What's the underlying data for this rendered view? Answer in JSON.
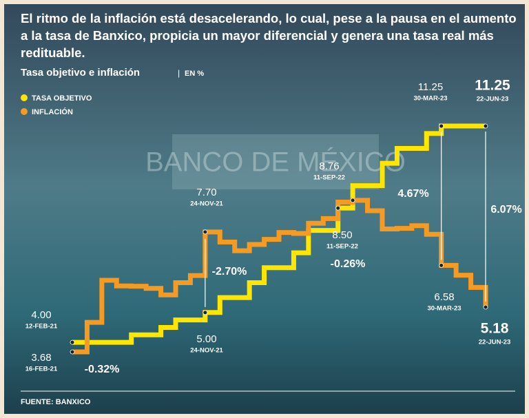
{
  "chart_data": {
    "type": "line",
    "title": "El ritmo de la inflación está desacelerando, lo cual, pese a la pausa en el aumento a la tasa de Banxico, propicia un mayor diferencial y genera una tasa real más redituable.",
    "subtitle": "Tasa objetivo e inflación",
    "unit": "EN %",
    "background_text": "BANCO DE MÉXICO",
    "source": "FUENTE: BANXICO",
    "step": true,
    "categories": [
      null,
      null,
      null,
      null,
      null,
      null,
      null,
      null,
      null,
      null,
      null,
      null,
      null,
      null,
      null,
      null,
      null,
      null,
      null,
      null,
      null,
      null,
      null,
      null,
      null,
      null,
      null,
      null,
      null
    ],
    "series": [
      {
        "name": "TASA OBJETIVO",
        "color": "#ffe600",
        "values": [
          4.0,
          4.0,
          4.0,
          4.0,
          4.25,
          4.25,
          4.5,
          4.75,
          4.75,
          5.0,
          5.5,
          5.5,
          6.0,
          6.5,
          6.5,
          7.0,
          7.75,
          7.75,
          8.5,
          9.25,
          9.25,
          10.0,
          10.5,
          10.5,
          11.0,
          11.25,
          11.25,
          11.25,
          11.25
        ]
      },
      {
        "name": "INFLACIÓN",
        "color": "#f59a23",
        "values": [
          3.68,
          4.67,
          6.08,
          5.89,
          5.88,
          5.81,
          5.59,
          6.0,
          6.24,
          7.7,
          7.36,
          7.07,
          7.28,
          7.45,
          7.68,
          7.65,
          7.99,
          8.15,
          8.7,
          8.76,
          8.41,
          7.8,
          7.82,
          7.91,
          7.62,
          6.58,
          6.25,
          5.84,
          5.18
        ]
      }
    ],
    "annotations": [
      {
        "text": "11.25",
        "sub": "30-MAR-23"
      },
      {
        "text": "11.25",
        "sub": "22-JUN-23"
      },
      {
        "text": "8.76",
        "sub": "11-SEP-22"
      },
      {
        "text": "7.70",
        "sub": "24-NOV-21"
      },
      {
        "text": "4.67%"
      },
      {
        "text": "6.07%"
      },
      {
        "text": "-2.70%"
      },
      {
        "text": "8.50",
        "sub": "11-SEP-22"
      },
      {
        "text": "-0.26%"
      },
      {
        "text": "6.58",
        "sub": "30-MAR-23"
      },
      {
        "text": "5.18",
        "sub": "22-JUN-23"
      },
      {
        "text": "4.00",
        "sub": "12-FEB-21"
      },
      {
        "text": "5.00",
        "sub": "24-NOV-21"
      },
      {
        "text": "3.68",
        "sub": "16-FEB-21"
      },
      {
        "text": "-0.32%"
      }
    ]
  }
}
